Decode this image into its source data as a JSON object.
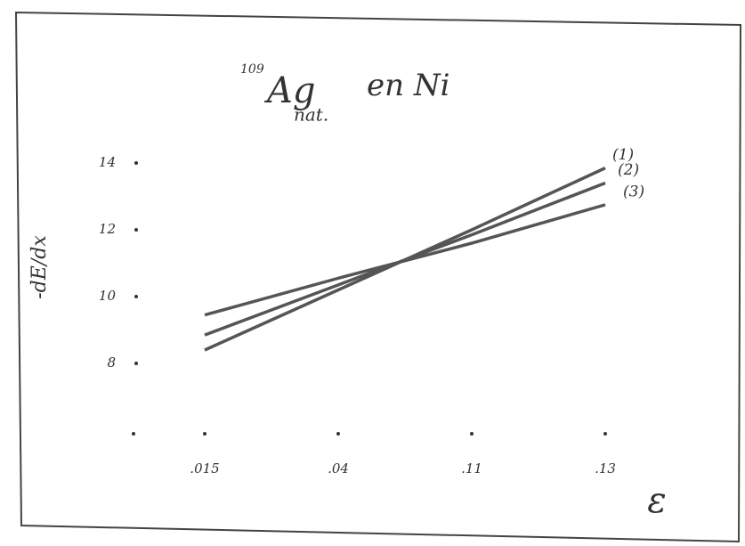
{
  "chart_data": {
    "type": "line",
    "title_superscript": "109",
    "title": "Ag",
    "title_subscript": "nat.",
    "title_suffix": "en Ni",
    "ylabel": "-dE/dx",
    "xlabel": "ε",
    "categories": [
      ".015",
      ".04",
      ".11",
      ".13"
    ],
    "series": [
      {
        "name": "(1)",
        "color": "#555555",
        "values": [
          8.4,
          10.2,
          12.0,
          13.85
        ]
      },
      {
        "name": "(2)",
        "color": "#555555",
        "values": [
          8.85,
          10.35,
          11.85,
          13.4
        ]
      },
      {
        "name": "(3)",
        "color": "#555555",
        "values": [
          9.45,
          10.55,
          11.6,
          12.75
        ]
      }
    ],
    "ylim": [
      6,
      14
    ],
    "yticks": [
      8,
      10,
      12,
      14
    ]
  }
}
